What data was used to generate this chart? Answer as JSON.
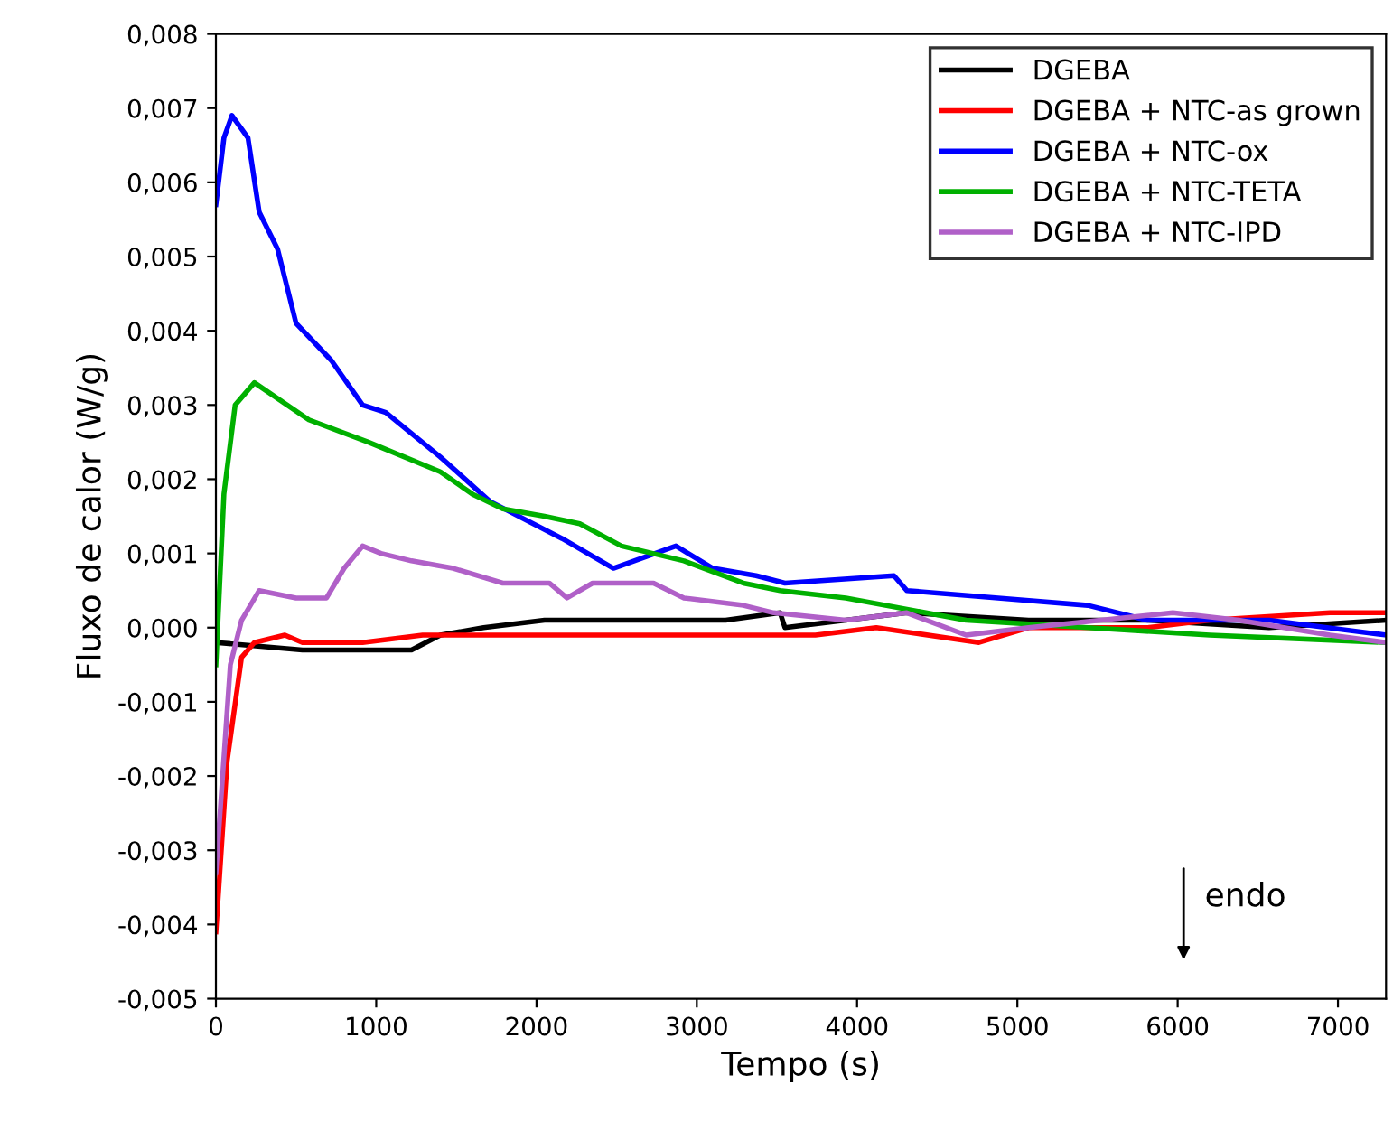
{
  "chart_data": {
    "type": "line",
    "xlabel": "Tempo (s)",
    "ylabel": "Fluxo de calor (W/g)",
    "xlim": [
      0,
      7300
    ],
    "xticks": [
      0,
      1000,
      2000,
      3000,
      4000,
      5000,
      6000,
      7000
    ],
    "ylim": [
      -0.005,
      0.008
    ],
    "yticks": [
      {
        "value": -0.005,
        "label": "-0,005"
      },
      {
        "value": -0.004,
        "label": "-0,004"
      },
      {
        "value": -0.003,
        "label": "-0,003"
      },
      {
        "value": -0.002,
        "label": "-0,002"
      },
      {
        "value": -0.001,
        "label": "-0,001"
      },
      {
        "value": 0,
        "label": "0,000"
      },
      {
        "value": 0.001,
        "label": "0,001"
      },
      {
        "value": 0.002,
        "label": "0,002"
      },
      {
        "value": 0.003,
        "label": "0,003"
      },
      {
        "value": 0.004,
        "label": "0,004"
      },
      {
        "value": 0.005,
        "label": "0,005"
      },
      {
        "value": 0.006,
        "label": "0,006"
      },
      {
        "value": 0.007,
        "label": "0,007"
      },
      {
        "value": 0.008,
        "label": "0,008"
      }
    ],
    "grid": false,
    "legend": "top right",
    "marker": "none",
    "line_style": "solid",
    "annotations": [
      "endo"
    ],
    "series": [
      {
        "name": "DGEBA",
        "color": "#000000",
        "x": [
          0,
          540,
          1220,
          1400,
          1670,
          2050,
          2920,
          3180,
          3520,
          3550,
          4310,
          5070,
          5810,
          6570,
          7300
        ],
        "values": [
          -0.0002,
          -0.0003,
          -0.0003,
          -0.0001,
          0,
          0.0001,
          0.0001,
          0.0001,
          0.0002,
          0,
          0.0002,
          0.0001,
          0.0001,
          0,
          0.0001
        ]
      },
      {
        "name": "DGEBA + NTC-as grown",
        "color": "#ff0000",
        "x": [
          0,
          70,
          160,
          240,
          430,
          540,
          915,
          1290,
          1480,
          2050,
          3180,
          3660,
          3740,
          4120,
          4760,
          5070,
          5810,
          6200,
          6950,
          7300
        ],
        "values": [
          -0.0041,
          -0.0018,
          -0.0004,
          -0.0002,
          -0.0001,
          -0.0002,
          -0.0002,
          -0.0001,
          -0.0001,
          -0.0001,
          -0.0001,
          -0.0001,
          -0.0001,
          0,
          -0.0002,
          0,
          0,
          0.0001,
          0.0002,
          0.0002
        ]
      },
      {
        "name": "DGEBA + NTC-ox",
        "color": "#0000ff",
        "x": [
          0,
          50,
          100,
          200,
          270,
          385,
          500,
          720,
          915,
          1060,
          1400,
          1710,
          2160,
          2480,
          2610,
          2870,
          3100,
          3370,
          3550,
          4230,
          4310,
          4880,
          5440,
          5810,
          6570,
          7300
        ],
        "values": [
          0.0057,
          0.0066,
          0.0069,
          0.0066,
          0.0056,
          0.0051,
          0.0041,
          0.0036,
          0.003,
          0.0029,
          0.0023,
          0.0017,
          0.0012,
          0.0008,
          0.0009,
          0.0011,
          0.0008,
          0.0007,
          0.0006,
          0.0007,
          0.0005,
          0.0004,
          0.0003,
          0.0001,
          0.0001,
          -0.0001
        ]
      },
      {
        "name": "DGEBA + NTC-TETA",
        "color": "#00b000",
        "x": [
          0,
          50,
          120,
          240,
          580,
          950,
          1400,
          1600,
          1790,
          2050,
          2270,
          2530,
          2920,
          3290,
          3520,
          3930,
          4680,
          5440,
          6200,
          7300
        ],
        "values": [
          -0.0005,
          0.0018,
          0.003,
          0.0033,
          0.0028,
          0.0025,
          0.0021,
          0.0018,
          0.0016,
          0.0015,
          0.0014,
          0.0011,
          0.0009,
          0.0006,
          0.0005,
          0.0004,
          0.0001,
          0,
          -0.0001,
          -0.0002
        ]
      },
      {
        "name": "DGEBA + NTC-IPD",
        "color": "#b060c8",
        "x": [
          0,
          90,
          160,
          270,
          500,
          690,
          800,
          915,
          1030,
          1220,
          1480,
          1790,
          2080,
          2190,
          2350,
          2730,
          2920,
          3290,
          3480,
          3930,
          4310,
          4680,
          5070,
          5970,
          6380,
          6950,
          7300
        ],
        "values": [
          -0.0033,
          -0.0005,
          0.0001,
          0.0005,
          0.0004,
          0.0004,
          0.0008,
          0.0011,
          0.001,
          0.0009,
          0.0008,
          0.0006,
          0.0006,
          0.0004,
          0.0006,
          0.0006,
          0.0004,
          0.0003,
          0.0002,
          0.0001,
          0.0002,
          -0.0001,
          0,
          0.0002,
          0.0001,
          -0.0001,
          -0.0002
        ]
      }
    ]
  }
}
